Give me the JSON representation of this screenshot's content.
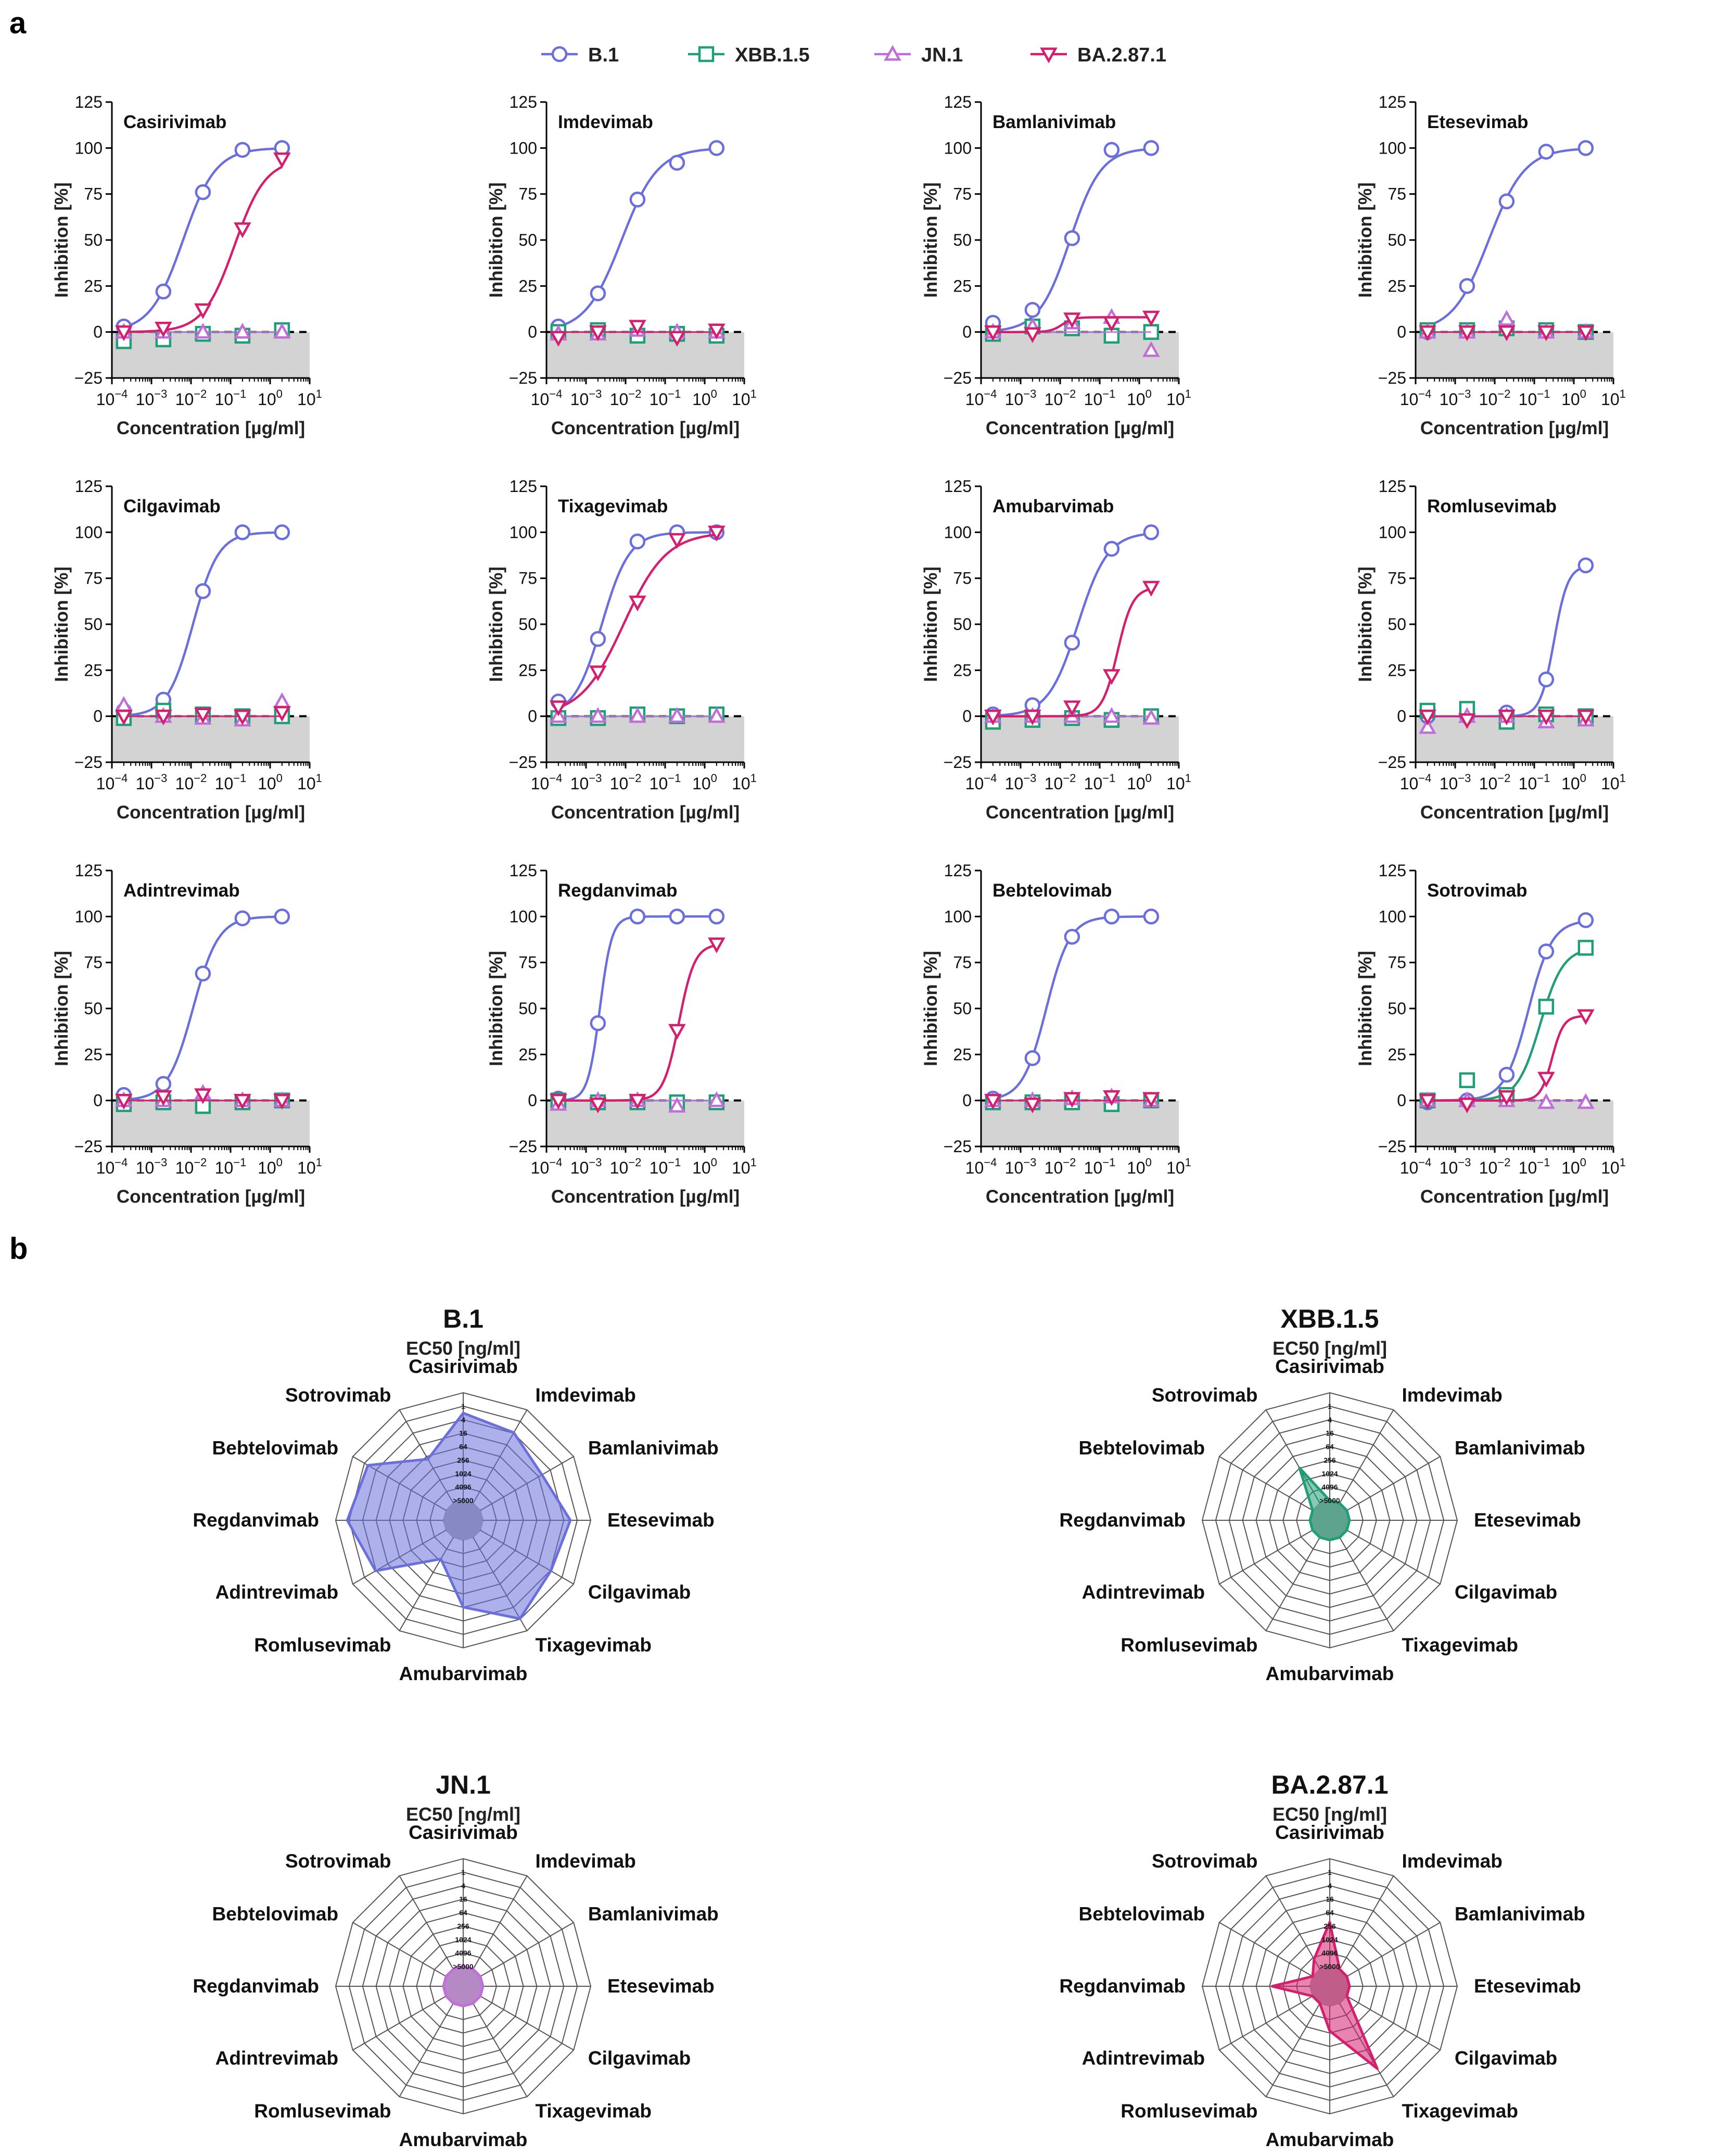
{
  "panel_labels": {
    "a": "a",
    "b": "b"
  },
  "legend": [
    {
      "name": "B.1",
      "color": "#6b6fdc",
      "marker": "circle"
    },
    {
      "name": "XBB.1.5",
      "color": "#1f9e78",
      "marker": "square"
    },
    {
      "name": "JN.1",
      "color": "#c06fd8",
      "marker": "triangle-up"
    },
    {
      "name": "BA.2.87.1",
      "color": "#d41f6e",
      "marker": "triangle-down"
    }
  ],
  "axis_labels": {
    "x": "Concentration [µg/ml]",
    "y": "Inhibition [%]"
  },
  "radar_subtitle": "EC50 [ng/ml]",
  "chart_data": [
    {
      "type": "line",
      "panel": "a",
      "xscale": "log",
      "xlim": [
        0.0001,
        10
      ],
      "ylim": [
        -25,
        125
      ],
      "yticks": [
        -25,
        0,
        25,
        50,
        75,
        100,
        125
      ],
      "xticks": [
        "10-4",
        "10-3",
        "10-2",
        "10-1",
        "100",
        "101"
      ],
      "x_concentrations": [
        0.0002,
        0.002,
        0.02,
        0.2,
        2
      ],
      "xlabel": "Concentration [µg/ml]",
      "ylabel": "Inhibition [%]",
      "reference_line": 0,
      "shaded_region": [
        -25,
        0
      ],
      "subplots": [
        {
          "title": "Casirivimab",
          "series": [
            {
              "name": "B.1",
              "values": [
                3,
                22,
                76,
                99,
                100
              ],
              "fit": true
            },
            {
              "name": "XBB.1.5",
              "values": [
                -5,
                -4,
                -1,
                -2,
                1
              ]
            },
            {
              "name": "JN.1",
              "values": [
                0,
                0,
                0,
                0,
                0
              ]
            },
            {
              "name": "BA.2.87.1",
              "values": [
                0,
                2,
                12,
                56,
                94
              ],
              "fit": true
            }
          ]
        },
        {
          "title": "Imdevimab",
          "series": [
            {
              "name": "B.1",
              "values": [
                3,
                21,
                72,
                92,
                100
              ],
              "fit": true
            },
            {
              "name": "XBB.1.5",
              "values": [
                0,
                1,
                -2,
                -1,
                -2
              ]
            },
            {
              "name": "JN.1",
              "values": [
                -1,
                -1,
                1,
                0,
                0
              ]
            },
            {
              "name": "BA.2.87.1",
              "values": [
                -3,
                0,
                3,
                -3,
                1
              ]
            }
          ]
        },
        {
          "title": "Bamlanivimab",
          "series": [
            {
              "name": "B.1",
              "values": [
                5,
                12,
                51,
                99,
                100
              ],
              "fit": true
            },
            {
              "name": "XBB.1.5",
              "values": [
                -1,
                3,
                2,
                -2,
                0
              ]
            },
            {
              "name": "JN.1",
              "values": [
                0,
                3,
                5,
                8,
                -10
              ]
            },
            {
              "name": "BA.2.87.1",
              "values": [
                0,
                -1,
                7,
                5,
                8
              ],
              "fit": true
            }
          ]
        },
        {
          "title": "Etesevimab",
          "series": [
            {
              "name": "B.1",
              "values": [
                0,
                25,
                71,
                98,
                100
              ],
              "fit": true
            },
            {
              "name": "XBB.1.5",
              "values": [
                1,
                1,
                2,
                1,
                0
              ]
            },
            {
              "name": "JN.1",
              "values": [
                0,
                0,
                7,
                0,
                0
              ]
            },
            {
              "name": "BA.2.87.1",
              "values": [
                0,
                0,
                0,
                0,
                0
              ]
            }
          ]
        },
        {
          "title": "Cilgavimab",
          "series": [
            {
              "name": "B.1",
              "values": [
                3,
                9,
                68,
                100,
                100
              ],
              "fit": true
            },
            {
              "name": "XBB.1.5",
              "values": [
                -1,
                3,
                1,
                0,
                0
              ]
            },
            {
              "name": "JN.1",
              "values": [
                6,
                0,
                -1,
                -2,
                8
              ]
            },
            {
              "name": "BA.2.87.1",
              "values": [
                0,
                0,
                1,
                0,
                2
              ]
            }
          ]
        },
        {
          "title": "Tixagevimab",
          "series": [
            {
              "name": "B.1",
              "values": [
                8,
                42,
                95,
                100,
                100
              ],
              "fit": true
            },
            {
              "name": "XBB.1.5",
              "values": [
                -1,
                -1,
                1,
                0,
                1
              ]
            },
            {
              "name": "JN.1",
              "values": [
                0,
                0,
                0,
                0,
                0
              ]
            },
            {
              "name": "BA.2.87.1",
              "values": [
                5,
                24,
                62,
                96,
                100
              ],
              "fit": true
            }
          ]
        },
        {
          "title": "Amubarvimab",
          "series": [
            {
              "name": "B.1",
              "values": [
                1,
                6,
                40,
                91,
                100
              ],
              "fit": true
            },
            {
              "name": "XBB.1.5",
              "values": [
                -3,
                -2,
                -1,
                -2,
                0
              ]
            },
            {
              "name": "JN.1",
              "values": [
                0,
                0,
                0,
                0,
                -1
              ]
            },
            {
              "name": "BA.2.87.1",
              "values": [
                0,
                0,
                5,
                22,
                70
              ],
              "fit": true
            }
          ]
        },
        {
          "title": "Romlusevimab",
          "series": [
            {
              "name": "B.1",
              "values": [
                0,
                0,
                2,
                20,
                82
              ],
              "fit": true
            },
            {
              "name": "XBB.1.5",
              "values": [
                3,
                4,
                -3,
                1,
                0
              ]
            },
            {
              "name": "JN.1",
              "values": [
                -6,
                0,
                0,
                -3,
                -2
              ]
            },
            {
              "name": "BA.2.87.1",
              "values": [
                0,
                -2,
                0,
                0,
                0
              ]
            }
          ]
        },
        {
          "title": "Adintrevimab",
          "series": [
            {
              "name": "B.1",
              "values": [
                3,
                9,
                69,
                99,
                100
              ],
              "fit": true
            },
            {
              "name": "XBB.1.5",
              "values": [
                -2,
                -1,
                -3,
                -1,
                0
              ]
            },
            {
              "name": "JN.1",
              "values": [
                0,
                0,
                4,
                0,
                0
              ]
            },
            {
              "name": "BA.2.87.1",
              "values": [
                0,
                2,
                3,
                0,
                0
              ]
            }
          ]
        },
        {
          "title": "Regdanvimab",
          "series": [
            {
              "name": "B.1",
              "values": [
                1,
                42,
                100,
                100,
                100
              ],
              "fit": true
            },
            {
              "name": "XBB.1.5",
              "values": [
                0,
                -1,
                -1,
                -1,
                -1
              ]
            },
            {
              "name": "JN.1",
              "values": [
                -2,
                0,
                0,
                -3,
                0
              ]
            },
            {
              "name": "BA.2.87.1",
              "values": [
                0,
                -2,
                0,
                38,
                85
              ],
              "fit": true
            }
          ]
        },
        {
          "title": "Bebtelovimab",
          "series": [
            {
              "name": "B.1",
              "values": [
                1,
                23,
                89,
                100,
                100
              ],
              "fit": true
            },
            {
              "name": "XBB.1.5",
              "values": [
                -1,
                -1,
                -1,
                -2,
                0
              ]
            },
            {
              "name": "JN.1",
              "values": [
                0,
                0,
                1,
                2,
                0
              ]
            },
            {
              "name": "BA.2.87.1",
              "values": [
                0,
                -2,
                1,
                2,
                1
              ]
            }
          ]
        },
        {
          "title": "Sotrovimab",
          "series": [
            {
              "name": "B.1",
              "values": [
                -1,
                0,
                14,
                81,
                98
              ],
              "fit": true
            },
            {
              "name": "XBB.1.5",
              "values": [
                0,
                11,
                3,
                51,
                83
              ],
              "fit": true
            },
            {
              "name": "JN.1",
              "values": [
                0,
                0,
                0,
                -1,
                -1
              ]
            },
            {
              "name": "BA.2.87.1",
              "values": [
                0,
                -2,
                2,
                12,
                46
              ],
              "fit": true
            }
          ]
        }
      ]
    },
    {
      "type": "radar",
      "panel": "b",
      "scale": "log2 (inverted; center = >5000)",
      "ring_labels": [
        "1",
        "4",
        "16",
        "64",
        "256",
        "1024",
        "4096",
        ">5000"
      ],
      "axes": [
        "Casirivimab",
        "Imdevimab",
        "Bamlanivimab",
        "Etesevimab",
        "Cilgavimab",
        "Tixagevimab",
        "Amubarvimab",
        "Romlusevimab",
        "Adintrevimab",
        "Regdanvimab",
        "Bebtelovimab",
        "Sotrovimab"
      ],
      "charts": [
        {
          "title": "B.1",
          "subtitle": "EC50 [ng/ml]",
          "color": "#6b6fdc",
          "values": [
            5,
            8,
            18,
            5,
            8,
            3,
            25,
            700,
            8,
            2.5,
            4,
            90
          ]
        },
        {
          "title": "XBB.1.5",
          "subtitle": "EC50 [ng/ml]",
          "color": "#1f9e78",
          "values": [
            ">5000",
            ">5000",
            ">5000",
            ">5000",
            ">5000",
            ">5000",
            ">5000",
            ">5000",
            ">5000",
            ">5000",
            ">5000",
            200
          ]
        },
        {
          "title": "JN.1",
          "subtitle": "EC50 [ng/ml]",
          "color": "#c06fd8",
          "values": [
            ">5000",
            ">5000",
            ">5000",
            ">5000",
            ">5000",
            ">5000",
            ">5000",
            ">5000",
            ">5000",
            ">5000",
            ">5000",
            ">5000"
          ]
        },
        {
          "title": "BA.2.87.1",
          "subtitle": "EC50 [ng/ml]",
          "color": "#d41f6e",
          "values": [
            150,
            ">5000",
            ">5000",
            ">5000",
            ">5000",
            13,
            700,
            ">5000",
            ">5000",
            250,
            ">5000",
            2000
          ]
        }
      ]
    }
  ]
}
